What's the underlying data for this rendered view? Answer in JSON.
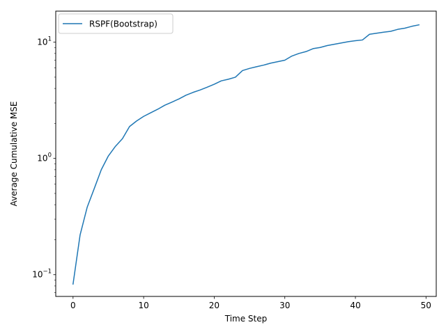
{
  "chart_data": {
    "type": "line",
    "title": "",
    "xlabel": "Time Step",
    "ylabel": "Average Cumulative MSE",
    "xlim": [
      -2.45,
      51.45
    ],
    "ylim": [
      0.065,
      18.5
    ],
    "yscale": "log",
    "grid": false,
    "legend_position": "upper-left",
    "x_ticks": [
      0,
      10,
      20,
      30,
      40,
      50
    ],
    "x_tick_labels": [
      "0",
      "10",
      "20",
      "30",
      "40",
      "50"
    ],
    "y_ticks": [
      0.1,
      1,
      10
    ],
    "y_tick_labels": [
      {
        "base": "10",
        "exp": "−1"
      },
      {
        "base": "10",
        "exp": "0"
      },
      {
        "base": "10",
        "exp": "1"
      }
    ],
    "series": [
      {
        "name": "RSPF(Bootstrap)",
        "color": "#1f77b4",
        "x": [
          0,
          1,
          2,
          3,
          4,
          5,
          6,
          7,
          8,
          9,
          10,
          11,
          12,
          13,
          14,
          15,
          16,
          17,
          18,
          19,
          20,
          21,
          22,
          23,
          24,
          25,
          26,
          27,
          28,
          29,
          30,
          31,
          32,
          33,
          34,
          35,
          36,
          37,
          38,
          39,
          40,
          41,
          42,
          43,
          44,
          45,
          46,
          47,
          48,
          49
        ],
        "y": [
          0.083,
          0.22,
          0.38,
          0.55,
          0.8,
          1.05,
          1.27,
          1.48,
          1.88,
          2.1,
          2.3,
          2.47,
          2.65,
          2.87,
          3.05,
          3.25,
          3.5,
          3.7,
          3.88,
          4.1,
          4.35,
          4.65,
          4.8,
          5.0,
          5.7,
          5.95,
          6.15,
          6.35,
          6.6,
          6.8,
          7.0,
          7.6,
          8.0,
          8.3,
          8.8,
          9.0,
          9.35,
          9.6,
          9.85,
          10.1,
          10.3,
          10.45,
          11.7,
          11.95,
          12.2,
          12.4,
          12.9,
          13.2,
          13.7,
          14.1
        ]
      }
    ]
  }
}
